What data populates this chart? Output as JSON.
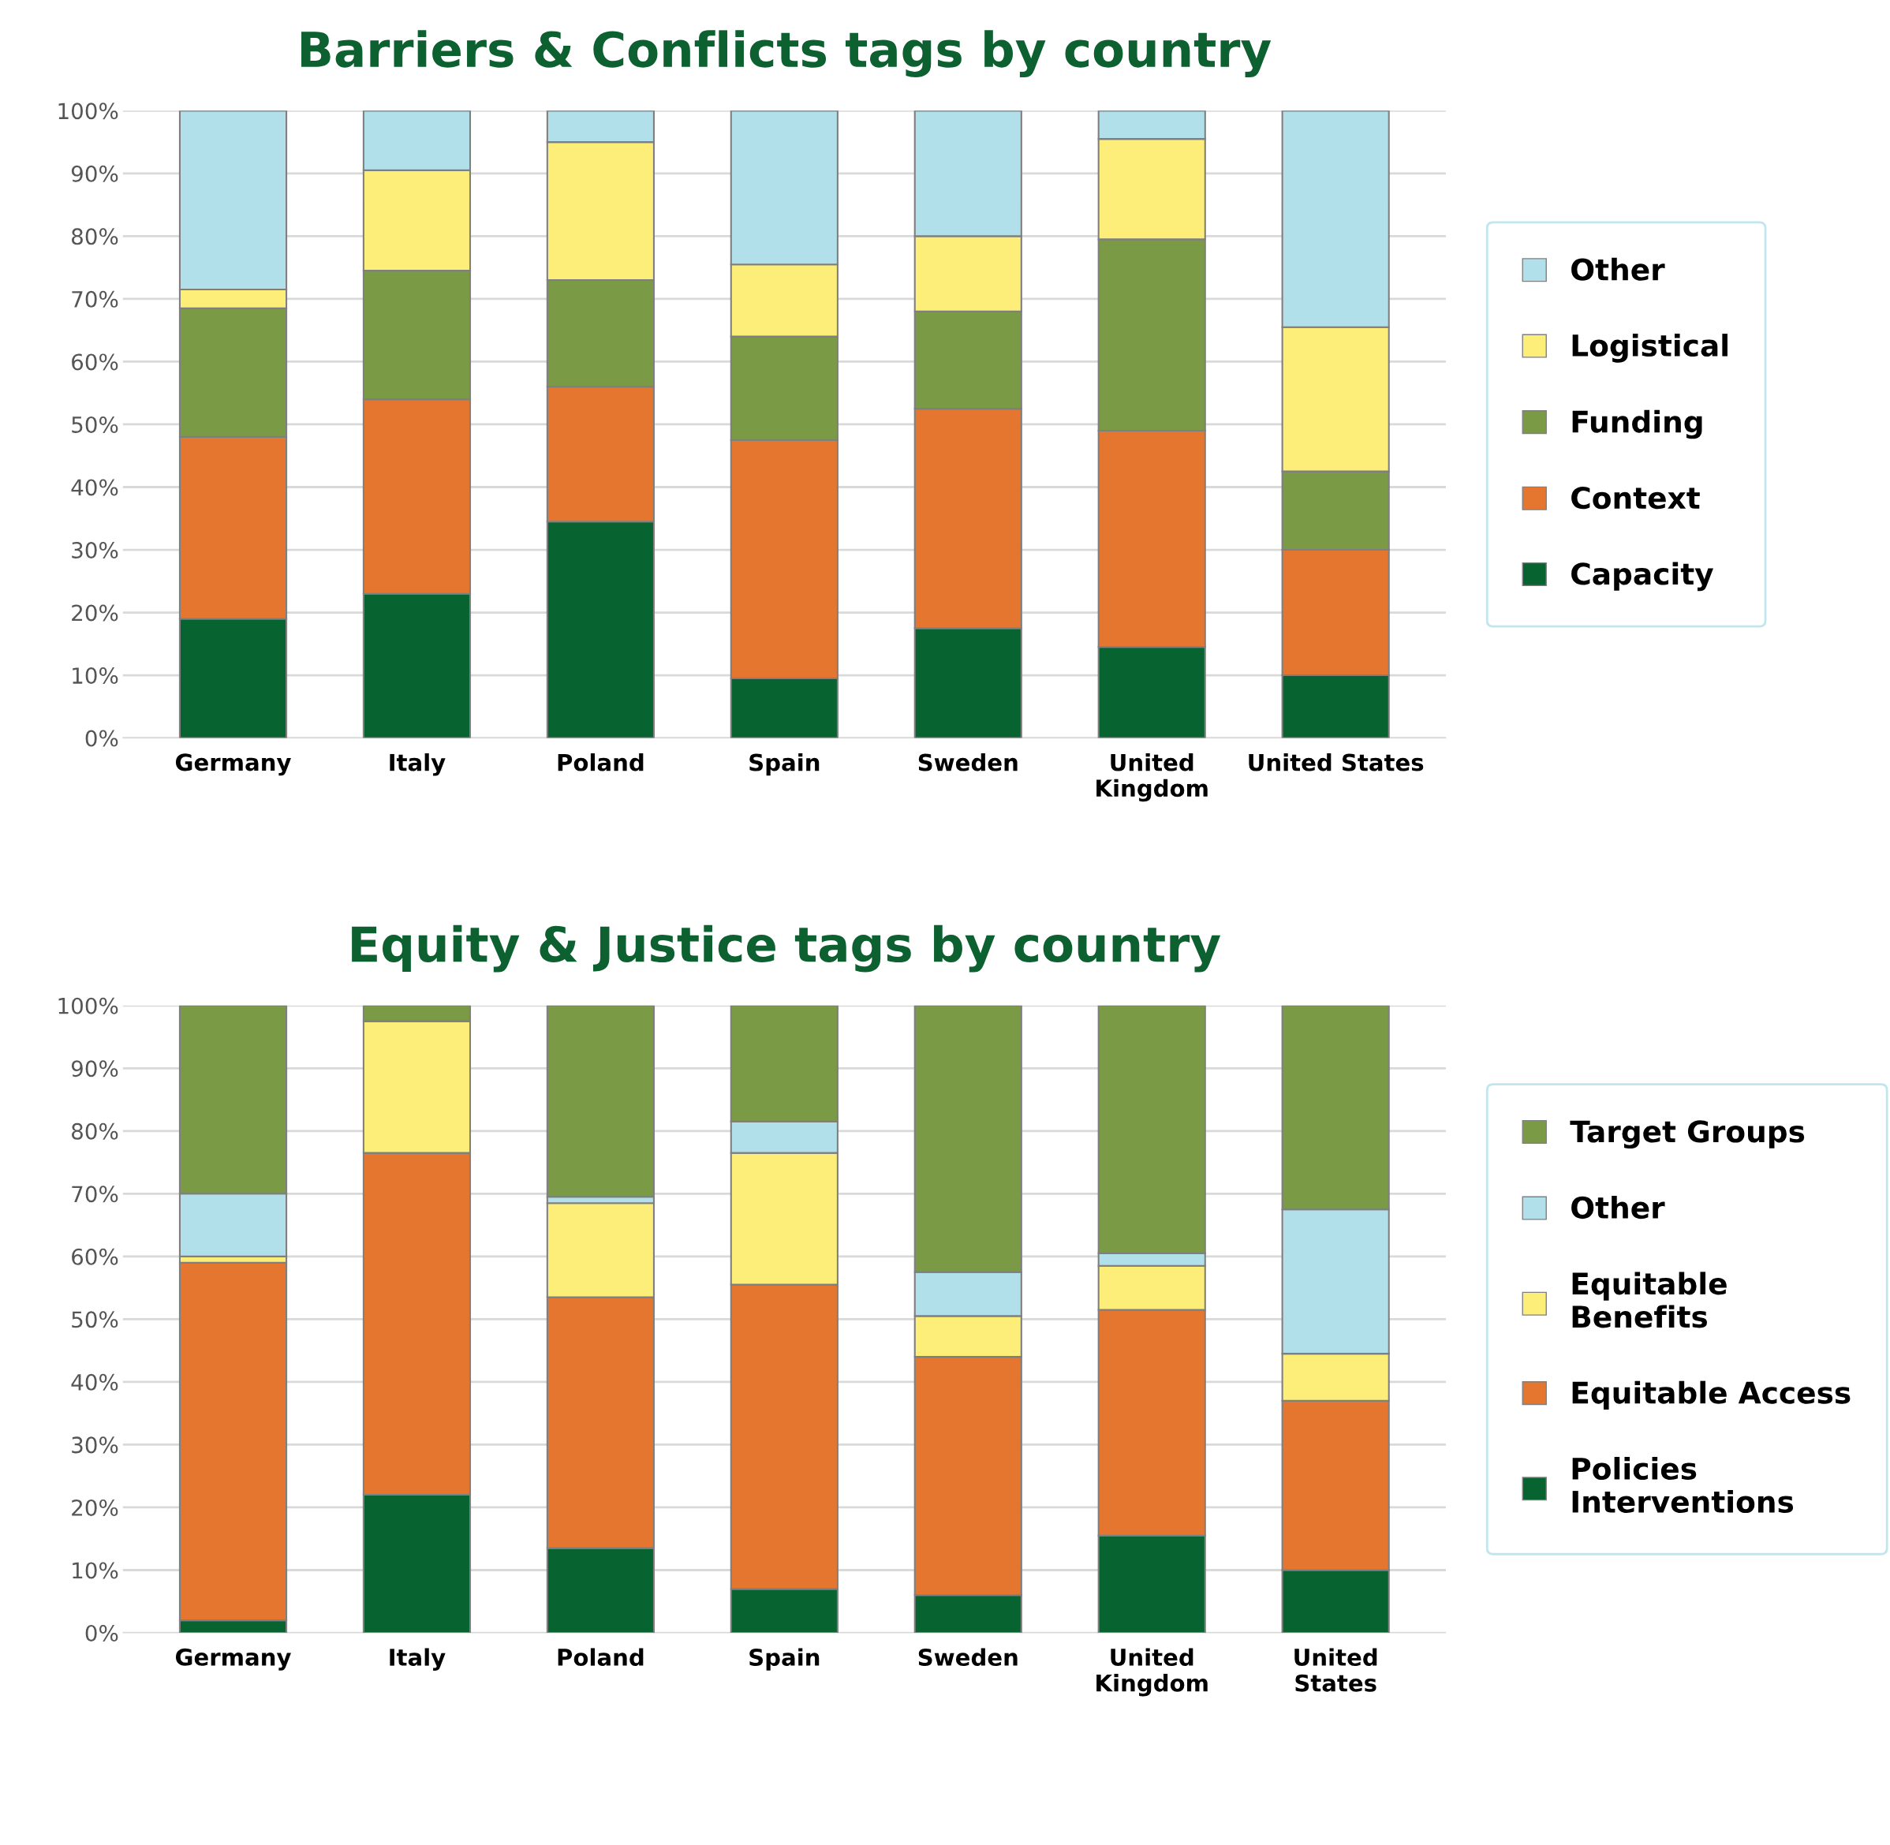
{
  "chart_data": [
    {
      "type": "bar",
      "title": "Barriers & Conflicts tags by country",
      "stacked": true,
      "grid": "y",
      "legend": "right",
      "categories": [
        "Germany",
        "Italy",
        "Poland",
        "Spain",
        "Sweden",
        "United\nKingdom",
        "United States"
      ],
      "ylim": [
        0,
        100
      ],
      "yticks": [
        {
          "value": 0,
          "label": "0%"
        },
        {
          "value": 10,
          "label": "10%"
        },
        {
          "value": 20,
          "label": "20%"
        },
        {
          "value": 30,
          "label": "30%"
        },
        {
          "value": 40,
          "label": "40%"
        },
        {
          "value": 50,
          "label": "50%"
        },
        {
          "value": 60,
          "label": "60%"
        },
        {
          "value": 70,
          "label": "70%"
        },
        {
          "value": 80,
          "label": "80%"
        },
        {
          "value": 90,
          "label": "90%"
        },
        {
          "value": 100,
          "label": "100%"
        }
      ],
      "series": [
        {
          "name": "Capacity",
          "color": "#07632f",
          "values": [
            19,
            23,
            34.5,
            9.5,
            17.5,
            14.5,
            10
          ]
        },
        {
          "name": "Context",
          "color": "#e57630",
          "values": [
            29,
            31,
            21.5,
            38,
            35,
            34.5,
            20
          ]
        },
        {
          "name": "Funding",
          "color": "#7b9a45",
          "values": [
            20.5,
            20.5,
            17,
            16.5,
            15.5,
            30.5,
            12.5
          ]
        },
        {
          "name": "Logistical",
          "color": "#fdee7a",
          "values": [
            3,
            16,
            22,
            11.5,
            12,
            16,
            23
          ]
        },
        {
          "name": "Other",
          "color": "#b2e0ea",
          "values": [
            28.5,
            9.5,
            5,
            24.5,
            20,
            4.5,
            34.5
          ]
        }
      ]
    },
    {
      "type": "bar",
      "title": "Equity & Justice tags by country",
      "stacked": true,
      "grid": "y",
      "legend": "right",
      "categories": [
        "Germany",
        "Italy",
        "Poland",
        "Spain",
        "Sweden",
        "United\nKingdom",
        "United\nStates"
      ],
      "ylim": [
        0,
        100
      ],
      "yticks": [
        {
          "value": 0,
          "label": "0%"
        },
        {
          "value": 10,
          "label": "10%"
        },
        {
          "value": 20,
          "label": "20%"
        },
        {
          "value": 30,
          "label": "30%"
        },
        {
          "value": 40,
          "label": "40%"
        },
        {
          "value": 50,
          "label": "50%"
        },
        {
          "value": 60,
          "label": "60%"
        },
        {
          "value": 70,
          "label": "70%"
        },
        {
          "value": 80,
          "label": "80%"
        },
        {
          "value": 90,
          "label": "90%"
        },
        {
          "value": 100,
          "label": "100%"
        }
      ],
      "series": [
        {
          "name": "Policies\nInterventions",
          "color": "#07632f",
          "values": [
            2,
            22,
            13.5,
            7,
            6,
            15.5,
            10
          ]
        },
        {
          "name": "Equitable Access",
          "color": "#e57630",
          "values": [
            57,
            54.5,
            40,
            48.5,
            38,
            36,
            27
          ]
        },
        {
          "name": "Equitable\nBenefits",
          "color": "#fdee7a",
          "values": [
            1,
            21,
            15,
            21,
            6.5,
            7,
            7.5
          ]
        },
        {
          "name": "Other",
          "color": "#b2e0ea",
          "values": [
            10,
            0,
            1,
            5,
            7,
            2,
            23
          ]
        },
        {
          "name": "Target Groups",
          "color": "#7b9a45",
          "values": [
            30,
            2.5,
            30.5,
            18.5,
            42.5,
            39.5,
            32.5
          ]
        }
      ]
    }
  ]
}
